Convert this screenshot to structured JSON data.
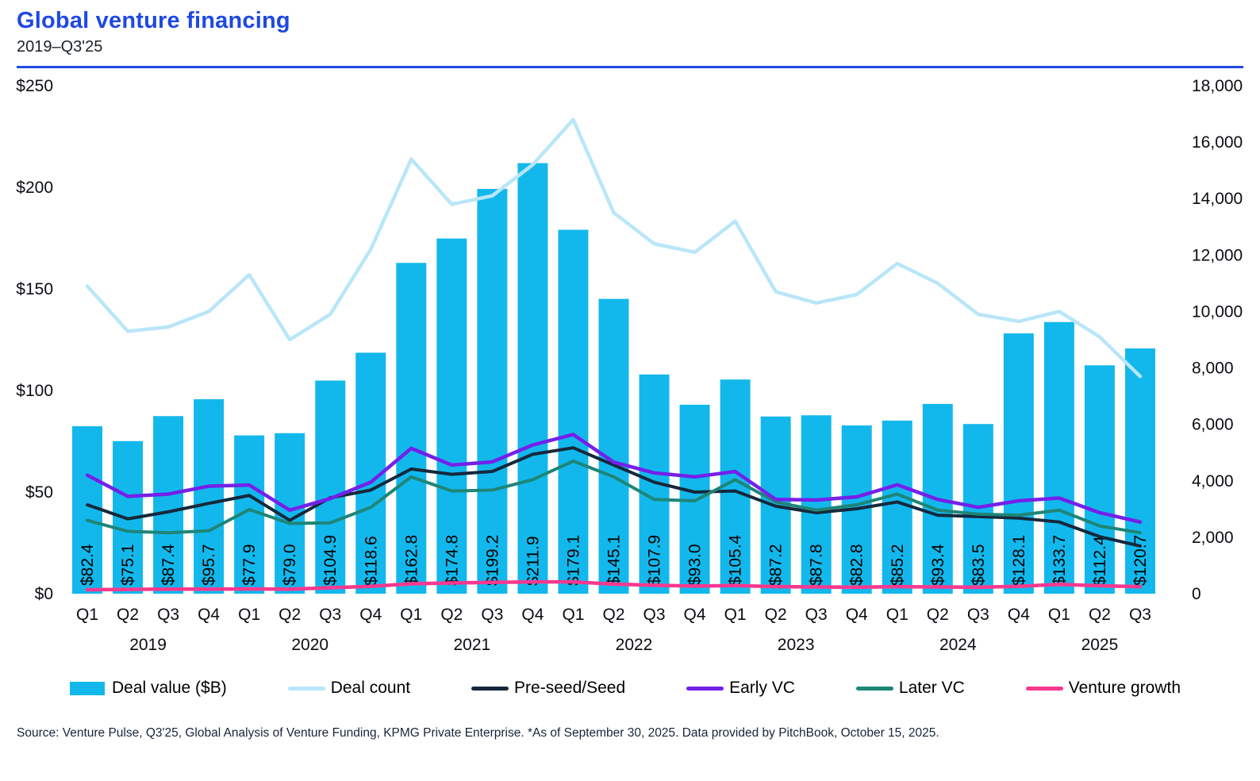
{
  "header": {
    "title": "Global venture financing",
    "subtitle": "2019–Q3'25"
  },
  "source": {
    "text": "Source: Venture Pulse, Q3'25, Global Analysis of Venture Funding, KPMG Private Enterprise. *As of September 30, 2025. Data provided by PitchBook, October 15, 2025."
  },
  "colors": {
    "title_blue": "#1e49e2",
    "bar": "#12b8ec",
    "deal_count": "#b9e6f9",
    "pre_seed": "#16283c",
    "early_vc": "#7420ea",
    "later_vc": "#1e8577",
    "venture_growth": "#f9388f",
    "axis_text": "#0a0d12",
    "source_text": "#17263b"
  },
  "chart_data": {
    "type": "bar-line-combo",
    "title": "Global venture financing",
    "subtitle": "2019–Q3'25",
    "quarters": [
      "Q1",
      "Q2",
      "Q3",
      "Q4",
      "Q1",
      "Q2",
      "Q3",
      "Q4",
      "Q1",
      "Q2",
      "Q3",
      "Q4",
      "Q1",
      "Q2",
      "Q3",
      "Q4",
      "Q1",
      "Q2",
      "Q3",
      "Q4",
      "Q1",
      "Q2",
      "Q3",
      "Q4",
      "Q1",
      "Q2",
      "Q3"
    ],
    "year_groups": [
      {
        "label": "2019",
        "count": 4
      },
      {
        "label": "2020",
        "count": 4
      },
      {
        "label": "2021",
        "count": 4
      },
      {
        "label": "2022",
        "count": 4
      },
      {
        "label": "2023",
        "count": 4
      },
      {
        "label": "2024",
        "count": 4
      },
      {
        "label": "2025",
        "count": 3
      }
    ],
    "left_axis": {
      "ticks": [
        "$0",
        "$50",
        "$100",
        "$150",
        "$200",
        "$250"
      ],
      "range": [
        0,
        250
      ],
      "tick_step": 50
    },
    "right_axis": {
      "ticks": [
        "0",
        "2,000",
        "4,000",
        "6,000",
        "8,000",
        "10,000",
        "12,000",
        "14,000",
        "16,000",
        "18,000"
      ],
      "range": [
        0,
        18000
      ],
      "tick_step": 2000
    },
    "bar_label_prefix": "$",
    "series": [
      {
        "name": "Deal value ($B)",
        "type": "bar",
        "axis": "left",
        "color": "#12b8ec",
        "values": [
          82.4,
          75.1,
          87.4,
          95.7,
          77.9,
          79.0,
          104.9,
          118.6,
          162.8,
          174.8,
          199.2,
          211.9,
          179.1,
          145.1,
          107.9,
          93.0,
          105.4,
          87.2,
          87.8,
          82.8,
          85.2,
          93.4,
          83.5,
          128.1,
          133.7,
          112.4,
          120.7
        ]
      },
      {
        "name": "Deal count",
        "type": "line",
        "axis": "right",
        "color": "#b9e6f9",
        "values": [
          10900,
          9300,
          9450,
          10000,
          11300,
          9000,
          9900,
          12200,
          15400,
          13800,
          14100,
          15200,
          16800,
          13500,
          12400,
          12100,
          13200,
          10700,
          10300,
          10600,
          11700,
          11000,
          9900,
          9650,
          10000,
          9100,
          7700
        ]
      },
      {
        "name": "Pre-seed/Seed",
        "type": "line",
        "axis": "right",
        "color": "#16283c",
        "values": [
          3150,
          2650,
          2900,
          3200,
          3480,
          2600,
          3400,
          3670,
          4420,
          4230,
          4330,
          4940,
          5170,
          4560,
          3950,
          3600,
          3640,
          3100,
          2870,
          3010,
          3250,
          2780,
          2730,
          2680,
          2540,
          2020,
          1690
        ]
      },
      {
        "name": "Early VC",
        "type": "line",
        "axis": "right",
        "color": "#7420ea",
        "values": [
          4200,
          3450,
          3530,
          3810,
          3850,
          2960,
          3370,
          3950,
          5150,
          4560,
          4670,
          5270,
          5640,
          4660,
          4280,
          4140,
          4330,
          3340,
          3320,
          3430,
          3860,
          3340,
          3060,
          3290,
          3390,
          2870,
          2540
        ]
      },
      {
        "name": "Later VC",
        "type": "line",
        "axis": "right",
        "color": "#1e8577",
        "values": [
          2600,
          2210,
          2160,
          2230,
          2980,
          2490,
          2510,
          3060,
          4140,
          3640,
          3670,
          4040,
          4700,
          4140,
          3340,
          3290,
          4040,
          3250,
          2960,
          3150,
          3530,
          2960,
          2820,
          2780,
          2960,
          2400,
          2160
        ]
      },
      {
        "name": "Venture growth",
        "type": "line",
        "axis": "right",
        "color": "#f9388f",
        "values": [
          140,
          150,
          160,
          160,
          170,
          160,
          210,
          260,
          350,
          380,
          400,
          420,
          420,
          340,
          300,
          270,
          290,
          250,
          240,
          230,
          250,
          240,
          230,
          260,
          330,
          280,
          250
        ]
      }
    ]
  }
}
